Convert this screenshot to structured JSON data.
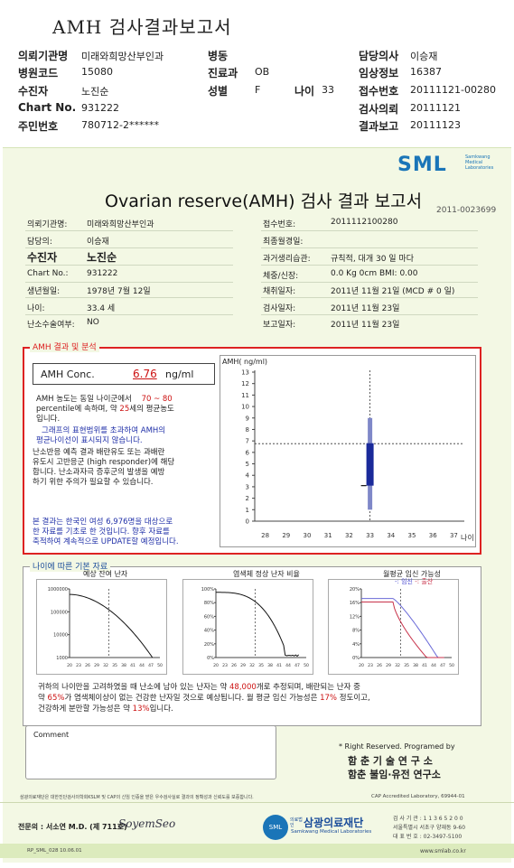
{
  "header": {
    "title": "AMH 검사결과보고서",
    "rows": [
      {
        "l1": "의뢰기관명",
        "v1": "미래와희망산부인과",
        "l2": "병동",
        "v2": "",
        "l4": "담당의사",
        "v4": "이승재"
      },
      {
        "l1": "병원코드",
        "v1": "15080",
        "l2": "진료과",
        "v2": "OB",
        "l4": "임상정보",
        "v4": "16387"
      },
      {
        "l1": "수진자",
        "v1": "노진순",
        "l2": "성별",
        "v2": "F",
        "l3": "나이",
        "v3": "33",
        "l4": "접수번호",
        "v4": "20111121-00280"
      },
      {
        "l1": "Chart No.",
        "v1": "931222",
        "l4": "검사의뢰",
        "v4": "20111121"
      },
      {
        "l1": "주민번호",
        "v1": "780712-2******",
        "l4": "결과보고",
        "v4": "20111123"
      }
    ]
  },
  "report": {
    "logo": "SML",
    "logo_sub": "Samkwang Medical Laboratories",
    "title": "Ovarian reserve(AMH) 검사 결과 보고서",
    "doc_no": "2011-0023699",
    "left": [
      {
        "label": "의뢰기관명:",
        "value": "미래와희망산부인과"
      },
      {
        "label": "담당의:",
        "value": "이승재"
      },
      {
        "label": "수진자",
        "value": "노진순"
      },
      {
        "label": "Chart No.:",
        "value": "931222"
      },
      {
        "label": "생년월일:",
        "value": "1978년 7월 12일"
      },
      {
        "label": "나이:",
        "value": "33.4 세"
      },
      {
        "label": "난소수술여부:",
        "value": "NO"
      }
    ],
    "right": [
      {
        "label": "접수번호:",
        "value": "2011112100280"
      },
      {
        "label": "최종월경일:",
        "value": ""
      },
      {
        "label": "과거생리습관:",
        "value": "규칙적, 대개  30 일 마다"
      },
      {
        "label": "체중/신장:",
        "value": "0.0 Kg        0cm    BMI:    0.00"
      },
      {
        "label": "채취일자:",
        "value": "2011년 11월 21일 (MCD # 0 일)"
      },
      {
        "label": "검사일자:",
        "value": "2011년 11월 23일"
      },
      {
        "label": "보고일자:",
        "value": "2011년 11월 23일"
      }
    ]
  },
  "amh": {
    "section": "AMH 결과 및 분석",
    "conc_label": "AMH Conc.",
    "conc_value": "6.76",
    "conc_unit": "ng/ml",
    "p1a": "AMH 농도는 동일 나이군에서",
    "p1b": "70 ~ 80",
    "p1c": "percentile에 속하며, 약",
    "p1d": "25",
    "p1e": "세의 평균농도",
    "p1f": "입니다.",
    "p2a": "그래프의 표현범위를 초과하여 AMH의",
    "p2b": "평균나이선이 표시되지 않습니다.",
    "p3a": "난소반응 예측 결과 배란유도 또는 과배란",
    "p3b": "유도시 고반응군 (high responder)에 해당",
    "p3c": "합니다. 난소과자극 증후군의 발생을 예방",
    "p3d": "하기 위한 주의가 필요할 수 있습니다.",
    "p4a": "본 결과는 한국인 여성 6,976명을 대상으로",
    "p4b": "한 자료를 기초로 한 것입니다. 향후 자료를",
    "p4c": "축적하여 계속적으로 UPDATE할 예정입니다."
  },
  "chart_data": [
    {
      "type": "box",
      "ylabel": "AMH( ng/ml)",
      "xlabel": "나이",
      "x_ticks": [
        28,
        29,
        30,
        31,
        32,
        33,
        34,
        35,
        36,
        37
      ],
      "y_ticks": [
        0,
        1,
        2,
        3,
        4,
        5,
        6,
        7,
        8,
        9,
        10,
        11,
        12,
        13
      ],
      "ylim": [
        0,
        13
      ],
      "xlim": [
        27.5,
        37.5
      ],
      "reference_line": 6.76,
      "patient_age": 33,
      "box": {
        "x": 33,
        "whisker_low": 1,
        "q1": 3.1,
        "q3": 6.8,
        "whisker_high": 9
      }
    },
    {
      "type": "line",
      "title": "예상 잔여 난자",
      "y_scale": "log",
      "y_ticks": [
        "1000000",
        "100000",
        "10000",
        "1000"
      ],
      "x_ticks": [
        20,
        23,
        26,
        29,
        32,
        35,
        38,
        41,
        44,
        47,
        50
      ],
      "patient_age": 33
    },
    {
      "type": "line",
      "title": "염색체 정상 난자 비율",
      "y_ticks": [
        "100%",
        "80%",
        "60%",
        "40%",
        "20%",
        "0%"
      ],
      "x_ticks": [
        20,
        23,
        26,
        29,
        32,
        35,
        38,
        41,
        44,
        47,
        50
      ],
      "patient_age": 33
    },
    {
      "type": "line",
      "title": "월평균 임신 가능성",
      "legend": [
        "-: 임신",
        "-: 출산"
      ],
      "y_ticks": [
        "20%",
        "16%",
        "12%",
        "8%",
        "4%",
        "0%"
      ],
      "x_ticks": [
        20,
        23,
        26,
        29,
        32,
        35,
        38,
        41,
        44,
        47,
        50
      ],
      "patient_age": 33,
      "colors": {
        "pregnancy": "#6a6ad8",
        "birth": "#c8324a"
      }
    }
  ],
  "basic": {
    "section": "나이에 따른 기본 자료",
    "s1": "귀하의 나이만을 고려하였을 때 난소에 남아 있는 난자는 약",
    "s1v": "48,000",
    "s1e": "개로 추정되며, 배란되는 난자 중",
    "s2": "약",
    "s2v": "65%",
    "s2e": "가 염색체이상이 없는 건강한 난자일 것으로 예상됩니다. 월 평균 임신 가능성은",
    "s2v2": "17%",
    "s2e2": "정도이고,",
    "s3": "건강하게 분만할 가능성은 약",
    "s3v": "13%",
    "s3e": "입니다."
  },
  "comment": {
    "label": "Comment"
  },
  "rights": {
    "line1": "* Right Reserved. Programed by",
    "line2": "함 춘  기 술  연 구 소",
    "line3": "함춘 불임·유전 연구소"
  },
  "footer": {
    "cert": "삼광의료재단은 대한진단검사의학회KSLM 및 CAP의 신임 인증을 받은 우수검사실로 결과의 정확성과 신뢰도를 보증합니다.",
    "cap": "CAP  Accredited  Laboratory,  69944-01",
    "doctor_label": "전문의 : 서소연 M.D. (제 711호)",
    "signature": "SoyemSeo",
    "org_small": "의료법인",
    "org": "삼광의료재단",
    "org_en": "Samkwang Medical Laboratories",
    "contact1": "검 사 기 관 : 1 1 3 6 5 2 0 0",
    "contact2": "서울특별시 서초구 양재동 9-60",
    "contact3": "대 표 번 호 : 02-3497-5100",
    "code": "RP_SML_028  10.06.01",
    "url": "www.smlab.co.kr"
  }
}
